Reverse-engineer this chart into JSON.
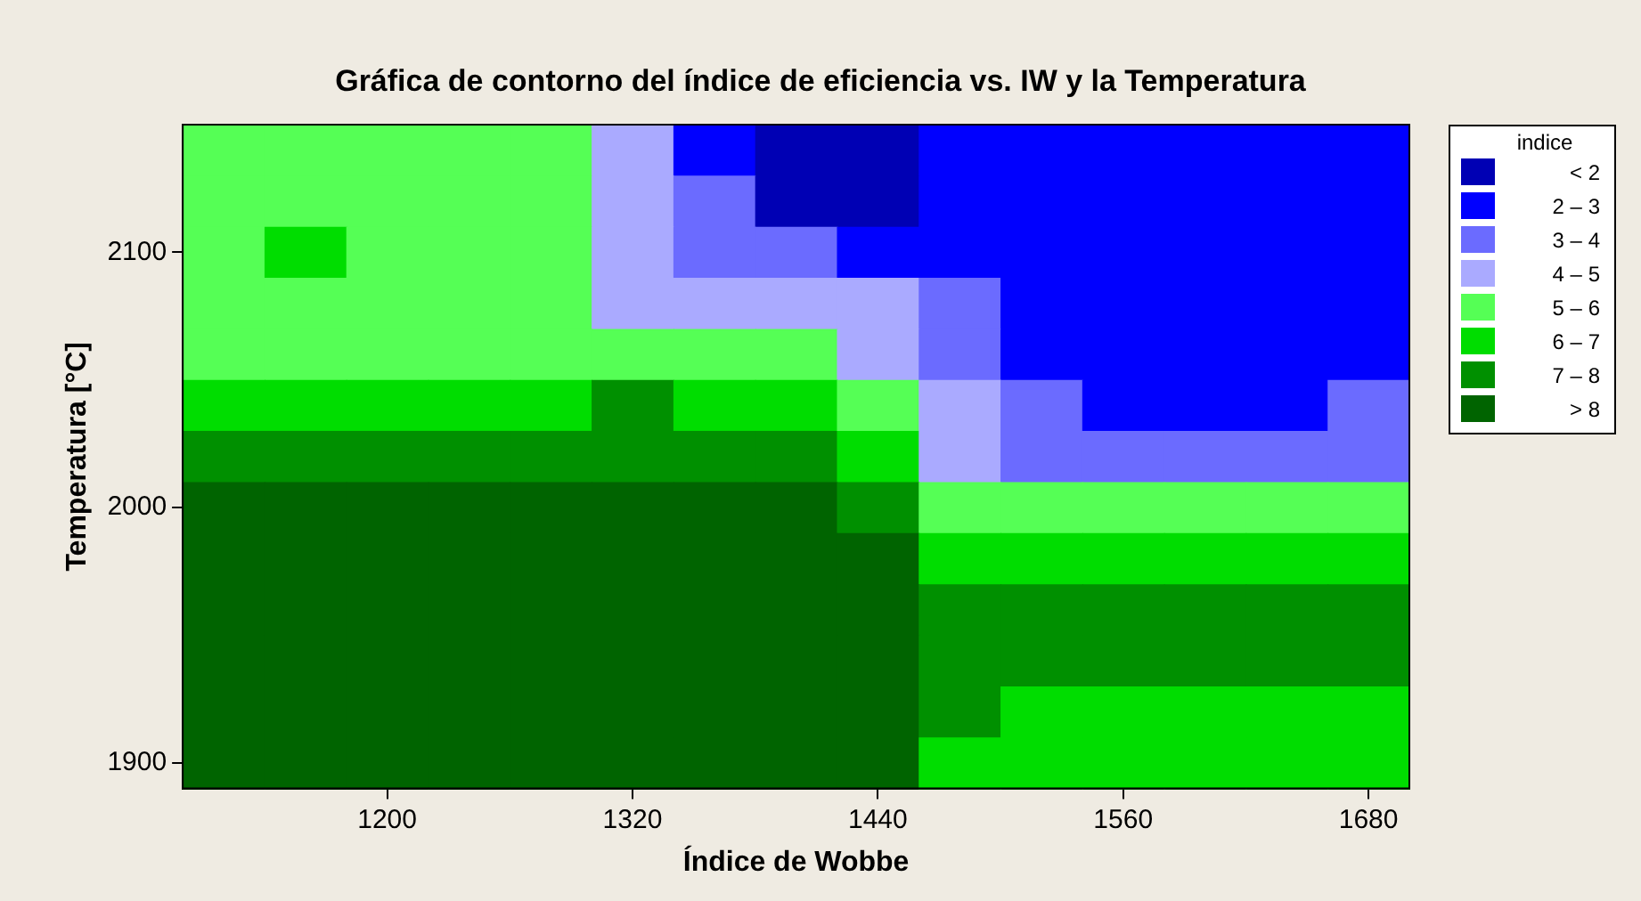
{
  "chart_data": {
    "type": "heatmap",
    "title": "Gráfica de contorno del índice de eficiencia vs. IW y la Temperatura",
    "xlabel": "Índice de Wobbe",
    "ylabel": "Temperatura [°C]",
    "clabel": "indice",
    "categories": [
      null,
      null,
      "1200",
      null,
      null,
      "1320",
      null,
      null,
      "1440",
      null,
      null,
      "1560",
      null,
      null,
      "1680"
    ],
    "y_categories": [
      null,
      null,
      "2100",
      null,
      null,
      null,
      null,
      "2000",
      null,
      null,
      null,
      null,
      "1900"
    ],
    "cells": [
      [
        5.5,
        5.5,
        5.5,
        5.5,
        5.5,
        4.5,
        2.5,
        1.5,
        1.5,
        2.5,
        2.5,
        2.5,
        2.5,
        2.5,
        2.5
      ],
      [
        5.5,
        5.5,
        5.5,
        5.5,
        5.5,
        4.5,
        3.5,
        1.5,
        1.5,
        2.5,
        2.5,
        2.5,
        2.5,
        2.5,
        2.5
      ],
      [
        5.5,
        6.5,
        5.5,
        5.5,
        5.5,
        4.5,
        3.5,
        3.5,
        2.5,
        2.5,
        2.5,
        2.5,
        2.5,
        2.5,
        2.5
      ],
      [
        5.5,
        5.5,
        5.5,
        5.5,
        5.5,
        4.5,
        4.5,
        4.5,
        4.5,
        3.5,
        2.5,
        2.5,
        2.5,
        2.5,
        2.5
      ],
      [
        5.5,
        5.5,
        5.5,
        5.5,
        5.5,
        5.5,
        5.5,
        5.5,
        4.5,
        3.5,
        2.5,
        2.5,
        2.5,
        2.5,
        2.5
      ],
      [
        6.5,
        6.5,
        6.5,
        6.5,
        6.5,
        7.5,
        6.5,
        6.5,
        5.5,
        4.5,
        3.5,
        2.5,
        2.5,
        2.5,
        3.5
      ],
      [
        7.5,
        7.5,
        7.5,
        7.5,
        7.5,
        7.5,
        7.5,
        7.5,
        6.5,
        4.5,
        3.5,
        3.5,
        3.5,
        3.5,
        3.5
      ],
      [
        8.5,
        8.5,
        8.5,
        8.5,
        8.5,
        8.5,
        8.5,
        8.5,
        7.5,
        5.5,
        5.5,
        5.5,
        5.5,
        5.5,
        5.5
      ],
      [
        8.5,
        8.5,
        8.5,
        8.5,
        8.5,
        8.5,
        8.5,
        8.5,
        8.5,
        6.5,
        6.5,
        6.5,
        6.5,
        6.5,
        6.5
      ],
      [
        8.5,
        8.5,
        8.5,
        8.5,
        8.5,
        8.5,
        8.5,
        8.5,
        8.5,
        7.5,
        7.5,
        7.5,
        7.5,
        7.5,
        7.5
      ],
      [
        8.5,
        8.5,
        8.5,
        8.5,
        8.5,
        8.5,
        8.5,
        8.5,
        8.5,
        7.5,
        7.5,
        7.5,
        7.5,
        7.5,
        7.5
      ],
      [
        8.5,
        8.5,
        8.5,
        8.5,
        8.5,
        8.5,
        8.5,
        8.5,
        8.5,
        7.5,
        6.5,
        6.5,
        6.5,
        6.5,
        6.5
      ],
      [
        8.5,
        8.5,
        8.5,
        8.5,
        8.5,
        8.5,
        8.5,
        8.5,
        8.5,
        6.5,
        6.5,
        6.5,
        6.5,
        6.5,
        6.5
      ]
    ],
    "clim": [
      1,
      9
    ],
    "cticks": [
      {
        "value": 1.5,
        "label": "< 2"
      },
      {
        "value": 2.5,
        "label": "2 – 3"
      },
      {
        "value": 3.5,
        "label": "3 – 4"
      },
      {
        "value": 4.5,
        "label": "4 – 5"
      },
      {
        "value": 5.5,
        "label": "5 – 6"
      },
      {
        "value": 6.5,
        "label": "6 – 7"
      },
      {
        "value": 7.5,
        "label": "7 – 8"
      },
      {
        "value": 8.5,
        "label": "> 8"
      }
    ]
  }
}
